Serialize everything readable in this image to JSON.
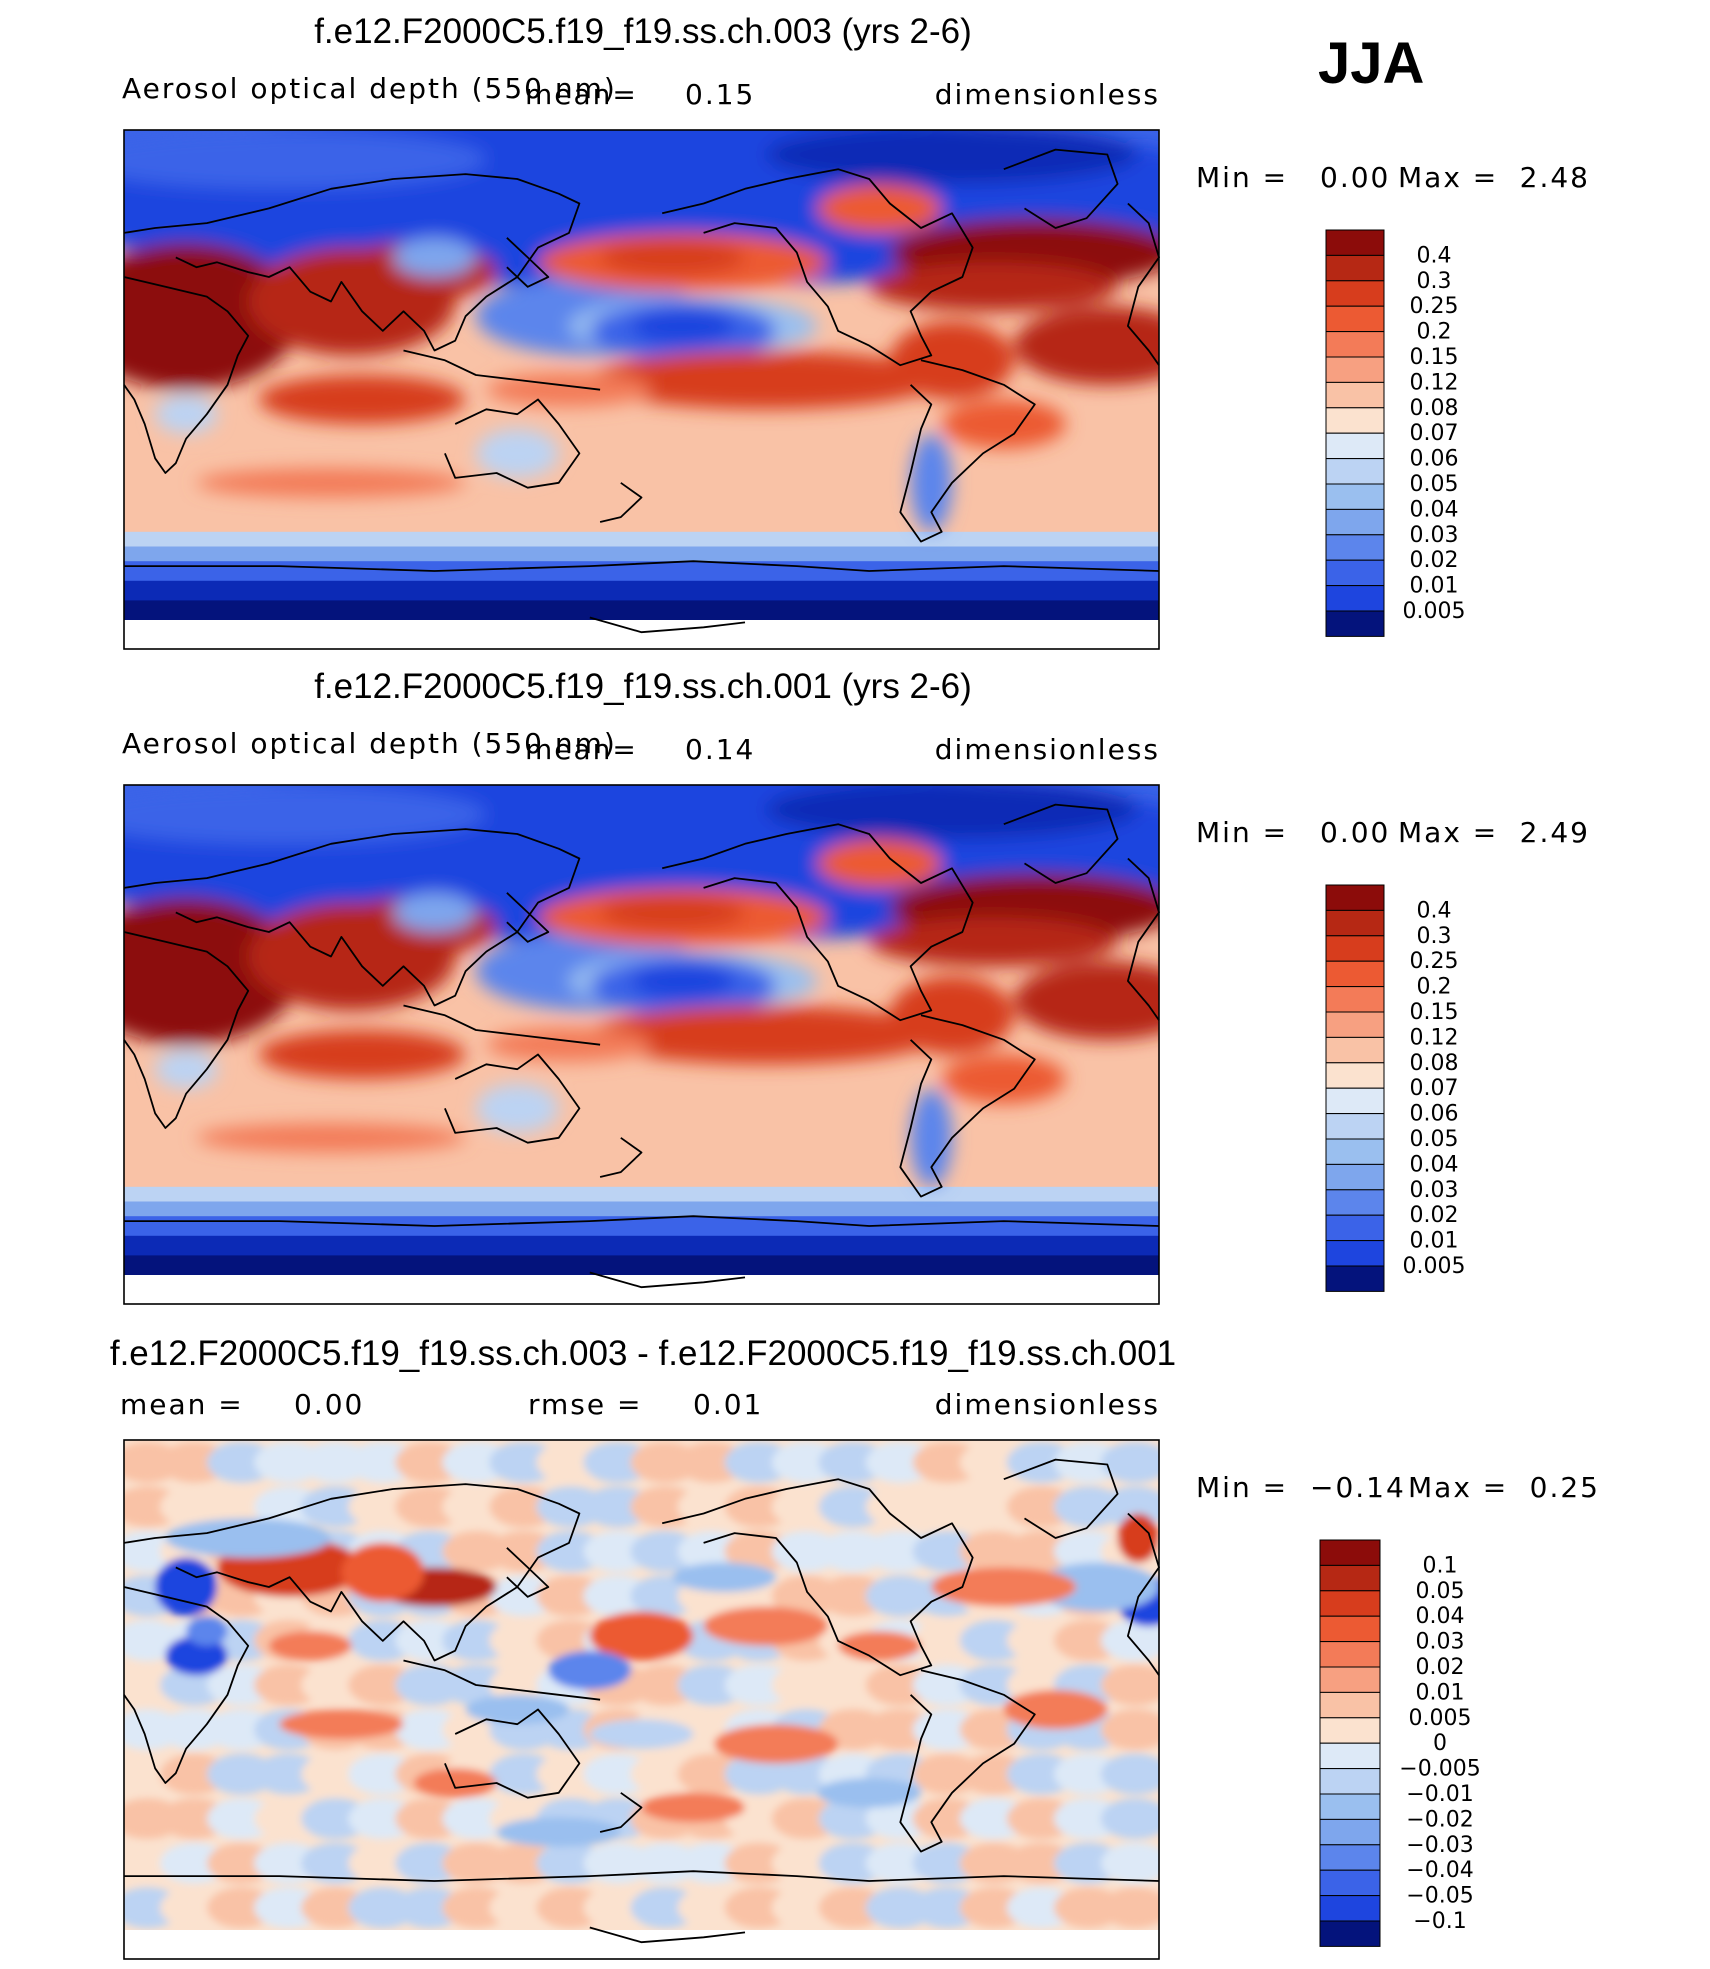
{
  "season": "JJA",
  "colors": {
    "pos": [
      "#fbe2cf",
      "#f9c2a6",
      "#f7a081",
      "#f37b58",
      "#ec5a33",
      "#d73d1d",
      "#b62814",
      "#8c0c0a"
    ],
    "neg": [
      "#dde9f7",
      "#bcd3f3",
      "#9abfef",
      "#7ea6ed",
      "#5c85ec",
      "#3b63e8",
      "#1e45df",
      "#0c2ab6",
      "#04137c"
    ],
    "coast": "#000000"
  },
  "chart_data": [
    {
      "type": "heatmap",
      "name": "panel-1",
      "title": "f.e12.F2000C5.f19_f19.ss.ch.003 (yrs 2-6)",
      "variable": "Aerosol optical depth (550 nm)",
      "mean_text": "mean=",
      "mean_value": "0.15",
      "units": "dimensionless",
      "min_label": "Min =",
      "min_value": "0.00",
      "max_label": "Max =",
      "max_value": "2.48",
      "legend_levels": [
        "0.4",
        "0.3",
        "0.25",
        "0.2",
        "0.15",
        "0.12",
        "0.08",
        "0.07",
        "0.06",
        "0.05",
        "0.04",
        "0.03",
        "0.02",
        "0.01",
        "0.005"
      ],
      "projection": "cylindrical, centered at 180E",
      "xlim": [
        30,
        390
      ],
      "ylim": [
        -80,
        90
      ]
    },
    {
      "type": "heatmap",
      "name": "panel-2",
      "title": "f.e12.F2000C5.f19_f19.ss.ch.001 (yrs 2-6)",
      "variable": "Aerosol optical depth (550 nm)",
      "mean_text": "mean=",
      "mean_value": "0.14",
      "units": "dimensionless",
      "min_label": "Min =",
      "min_value": "0.00",
      "max_label": "Max =",
      "max_value": "2.49",
      "legend_levels": [
        "0.4",
        "0.3",
        "0.25",
        "0.2",
        "0.15",
        "0.12",
        "0.08",
        "0.07",
        "0.06",
        "0.05",
        "0.04",
        "0.03",
        "0.02",
        "0.01",
        "0.005"
      ],
      "projection": "cylindrical, centered at 180E",
      "xlim": [
        30,
        390
      ],
      "ylim": [
        -80,
        90
      ]
    },
    {
      "type": "heatmap",
      "name": "panel-3-difference",
      "title": "f.e12.F2000C5.f19_f19.ss.ch.003 - f.e12.F2000C5.f19_f19.ss.ch.001",
      "mean_text": "mean =",
      "mean_value": "0.00",
      "rmse_text": "rmse =",
      "rmse_value": "0.01",
      "units": "dimensionless",
      "min_label": "Min =",
      "min_value": "−0.14",
      "max_label": "Max =",
      "max_value": "0.25",
      "legend_levels": [
        "0.1",
        "0.05",
        "0.04",
        "0.03",
        "0.02",
        "0.01",
        "0.005",
        "0",
        "−0.005",
        "−0.01",
        "−0.02",
        "−0.03",
        "−0.04",
        "−0.05",
        "−0.1"
      ],
      "projection": "cylindrical, centered at 180E",
      "xlim": [
        30,
        390
      ],
      "ylim": [
        -80,
        90
      ]
    }
  ]
}
